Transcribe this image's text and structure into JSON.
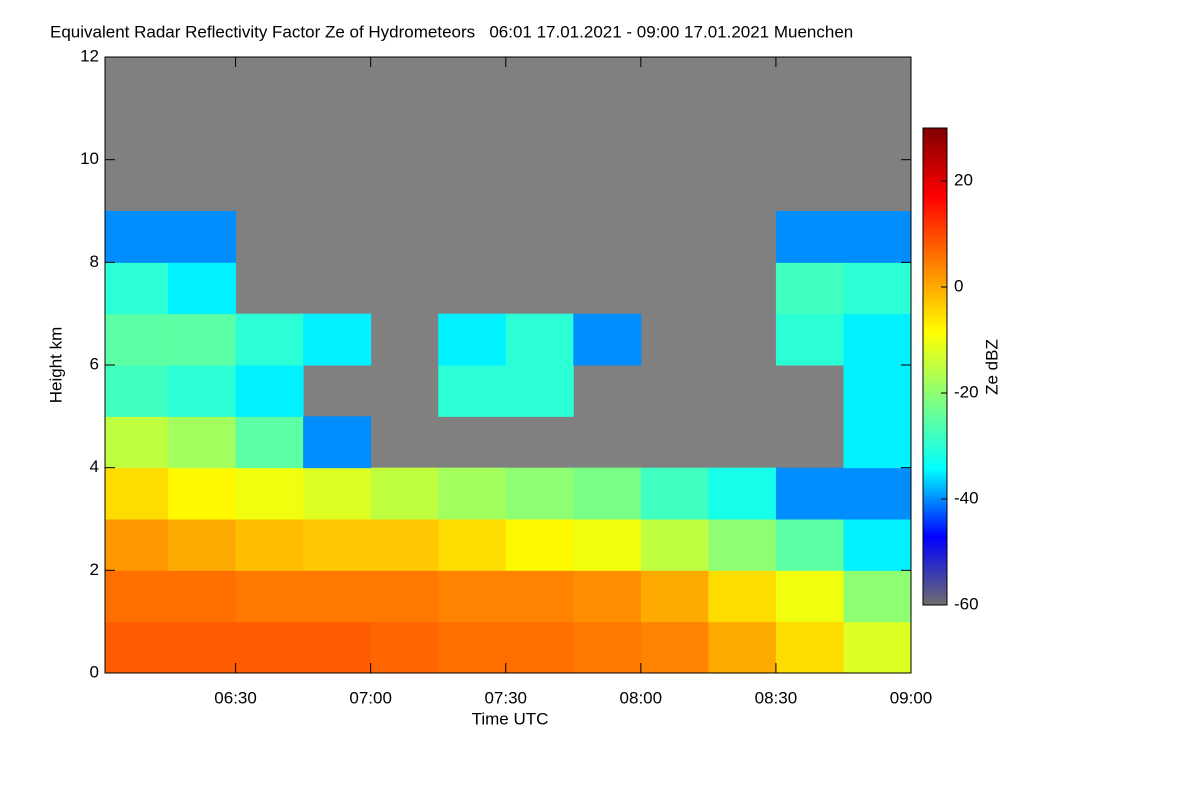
{
  "chart_data": {
    "type": "heatmap",
    "title": "Equivalent Radar Reflectivity Factor Ze of Hydrometeors   06:01 17.01.2021 - 09:00 17.01.2021 Muenchen",
    "x_label": "Time UTC",
    "y_label": "Height km",
    "colorbar_label": "Ze dBZ",
    "xlim": [
      361,
      540
    ],
    "xticks": [
      {
        "value": 390,
        "label": "06:30"
      },
      {
        "value": 420,
        "label": "07:00"
      },
      {
        "value": 450,
        "label": "07:30"
      },
      {
        "value": 480,
        "label": "08:00"
      },
      {
        "value": 510,
        "label": "08:30"
      },
      {
        "value": 540,
        "label": "09:00"
      }
    ],
    "ylim": [
      0,
      12
    ],
    "yticks": [
      0,
      2,
      4,
      6,
      8,
      10,
      12
    ],
    "clim": [
      -60,
      30
    ],
    "cticks": [
      -60,
      -40,
      -20,
      0,
      20
    ],
    "colormap": [
      "#6e6e6e",
      "#0000ff",
      "#00ffff",
      "#80ff80",
      "#ffff00",
      "#ff8000",
      "#ff0000",
      "#800000"
    ],
    "background": "#808080",
    "x_edges": [
      361,
      375,
      390,
      405,
      420,
      435,
      450,
      465,
      480,
      495,
      510,
      525,
      540
    ],
    "y_edges": [
      0,
      1,
      2,
      3,
      4,
      5,
      6,
      7,
      8,
      9,
      10,
      11,
      12
    ],
    "z": [
      [
        8,
        8,
        8,
        8,
        7,
        6,
        6,
        5,
        4,
        0,
        -5,
        -12
      ],
      [
        6,
        6,
        5,
        5,
        5,
        4,
        4,
        3,
        0,
        -5,
        -10,
        -20
      ],
      [
        2,
        0,
        -2,
        -3,
        -3,
        -5,
        -8,
        -10,
        -15,
        -20,
        -25,
        -35
      ],
      [
        -5,
        -8,
        -10,
        -12,
        -15,
        -18,
        -20,
        -22,
        -28,
        -32,
        -40,
        -40
      ],
      [
        -15,
        -18,
        -25,
        -40,
        null,
        null,
        null,
        null,
        null,
        null,
        null,
        -35
      ],
      [
        -28,
        -30,
        -35,
        null,
        null,
        -30,
        -30,
        null,
        null,
        null,
        null,
        -35
      ],
      [
        -25,
        -25,
        -30,
        -35,
        null,
        -35,
        -30,
        -40,
        null,
        null,
        -30,
        -35
      ],
      [
        -30,
        -35,
        null,
        null,
        null,
        null,
        null,
        null,
        null,
        null,
        -28,
        -30
      ],
      [
        -40,
        -40,
        null,
        null,
        null,
        null,
        null,
        null,
        null,
        null,
        -40,
        -40
      ],
      [
        null,
        null,
        null,
        null,
        null,
        null,
        null,
        null,
        null,
        null,
        null,
        null
      ],
      [
        null,
        null,
        null,
        null,
        null,
        null,
        null,
        null,
        null,
        null,
        null,
        null
      ],
      [
        null,
        null,
        null,
        null,
        null,
        null,
        null,
        null,
        null,
        null,
        null,
        null
      ]
    ]
  }
}
